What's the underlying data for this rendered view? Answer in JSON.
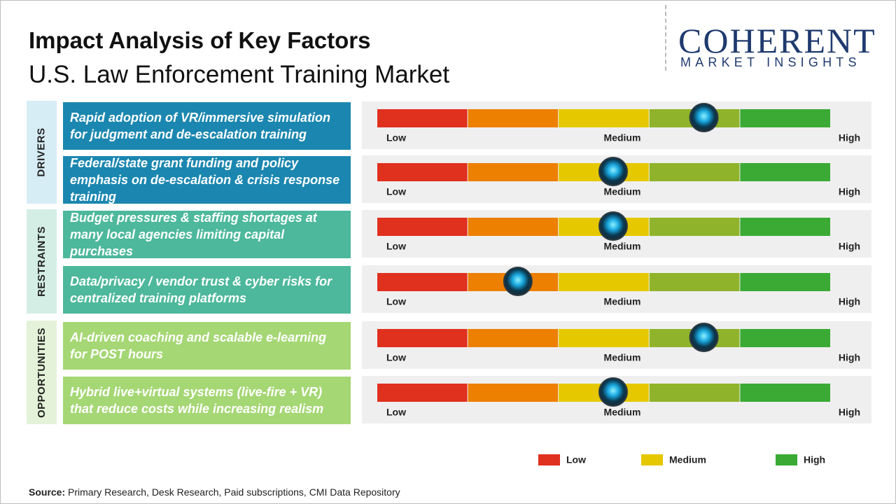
{
  "header": {
    "title": "Impact Analysis of Key Factors",
    "subtitle": "U.S. Law Enforcement Training Market"
  },
  "logo": {
    "name": "COHERENT",
    "tagline": "MARKET INSIGHTS"
  },
  "scale": {
    "range": [
      0,
      100
    ],
    "labels": [
      "Low",
      "Medium",
      "High"
    ],
    "segment_colors": [
      "#e0301e",
      "#ed8000",
      "#e6c800",
      "#8fb32a",
      "#3aaa35"
    ]
  },
  "groups": [
    {
      "name": "DRIVERS",
      "color": "#1b87b0",
      "side_color": "#d7edf6",
      "factors": [
        {
          "text": "Rapid adoption of VR/immersive simulation for judgment and de-escalation training",
          "impact": 72
        },
        {
          "text": "Federal/state grant funding and policy emphasis on de-escalation & crisis response training",
          "impact": 52
        }
      ]
    },
    {
      "name": "RESTRAINTS",
      "color": "#4db89b",
      "side_color": "#d4eee6",
      "factors": [
        {
          "text": "Budget pressures & staffing shortages at many local agencies limiting capital purchases",
          "impact": 52
        },
        {
          "text": "Data/privacy / vendor trust & cyber risks for centralized training platforms",
          "impact": 31
        }
      ]
    },
    {
      "name": "OPPORTUNITIES",
      "color": "#a5d774",
      "side_color": "#e3f2d8",
      "factors": [
        {
          "text": "AI-driven coaching and scalable e-learning for POST hours",
          "impact": 72
        },
        {
          "text": "Hybrid live+virtual systems (live-fire + VR) that reduce costs while increasing realism",
          "impact": 52
        }
      ]
    }
  ],
  "legend": [
    {
      "label": "Low",
      "color": "#e0301e"
    },
    {
      "label": "Medium",
      "color": "#e6c800"
    },
    {
      "label": "High",
      "color": "#3aaa35"
    }
  ],
  "source": {
    "label": "Source:",
    "text": "Primary Research, Desk Research, Paid subscriptions, CMI Data Repository"
  }
}
